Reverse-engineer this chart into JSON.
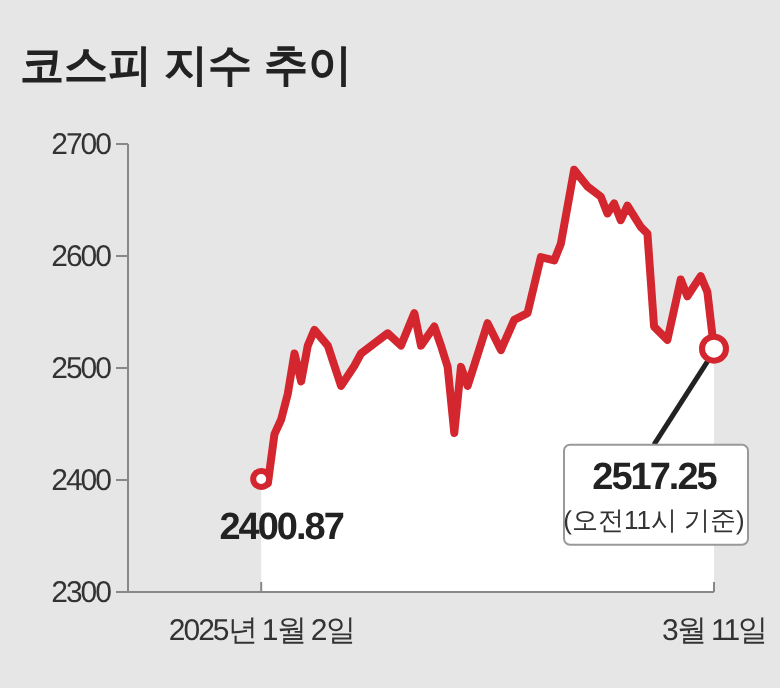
{
  "chart_data": {
    "type": "area",
    "title": "코스피 지수 추이",
    "x": [
      "2025-01-02",
      "2025-01-03",
      "2025-01-04",
      "2025-01-05",
      "2025-01-06",
      "2025-01-07",
      "2025-01-08",
      "2025-01-09",
      "2025-01-10",
      "2025-01-12",
      "2025-01-14",
      "2025-01-16",
      "2025-01-17",
      "2025-01-21",
      "2025-01-23",
      "2025-01-25",
      "2025-01-26",
      "2025-01-28",
      "2025-01-29",
      "2025-01-30",
      "2025-01-31",
      "2025-02-01",
      "2025-02-02",
      "2025-02-05",
      "2025-02-07",
      "2025-02-09",
      "2025-02-11",
      "2025-02-13",
      "2025-02-15",
      "2025-02-16",
      "2025-02-18",
      "2025-02-20",
      "2025-02-22",
      "2025-02-23",
      "2025-02-24",
      "2025-02-25",
      "2025-02-26",
      "2025-02-28",
      "2025-03-01",
      "2025-03-02",
      "2025-03-04",
      "2025-03-06",
      "2025-03-07",
      "2025-03-09",
      "2025-03-10",
      "2025-03-11"
    ],
    "series": [
      {
        "color": "#d3262e",
        "values": [
          2400.87,
          2397,
          2441,
          2454,
          2477,
          2513,
          2488,
          2520,
          2534,
          2520,
          2484,
          2502,
          2513,
          2531,
          2520,
          2549,
          2520,
          2537,
          2520,
          2501,
          2442,
          2501,
          2484,
          2540,
          2516,
          2543,
          2549,
          2599,
          2596,
          2611,
          2677,
          2662,
          2653,
          2638,
          2647,
          2632,
          2645,
          2626,
          2620,
          2537,
          2525,
          2579,
          2564,
          2582,
          2568,
          2517.25
        ]
      }
    ],
    "xlim": [
      "2024-12-13",
      "2025-03-11"
    ],
    "xticks": [
      {
        "value": "2025-01-02",
        "label": "2025년 1월 2일"
      },
      {
        "value": "2025-03-11",
        "label": "3월 11일"
      }
    ],
    "ylim": [
      2300,
      2700
    ],
    "yticks": [
      2300,
      2400,
      2500,
      2600,
      2700
    ],
    "grid": false,
    "annotations": [
      {
        "text": "2400.87",
        "x": "2025-01-02",
        "y": 2400.87
      },
      {
        "text": "2517.25",
        "x": "2025-03-11",
        "y": 2517.25
      },
      "(오전11시 기준)"
    ]
  }
}
